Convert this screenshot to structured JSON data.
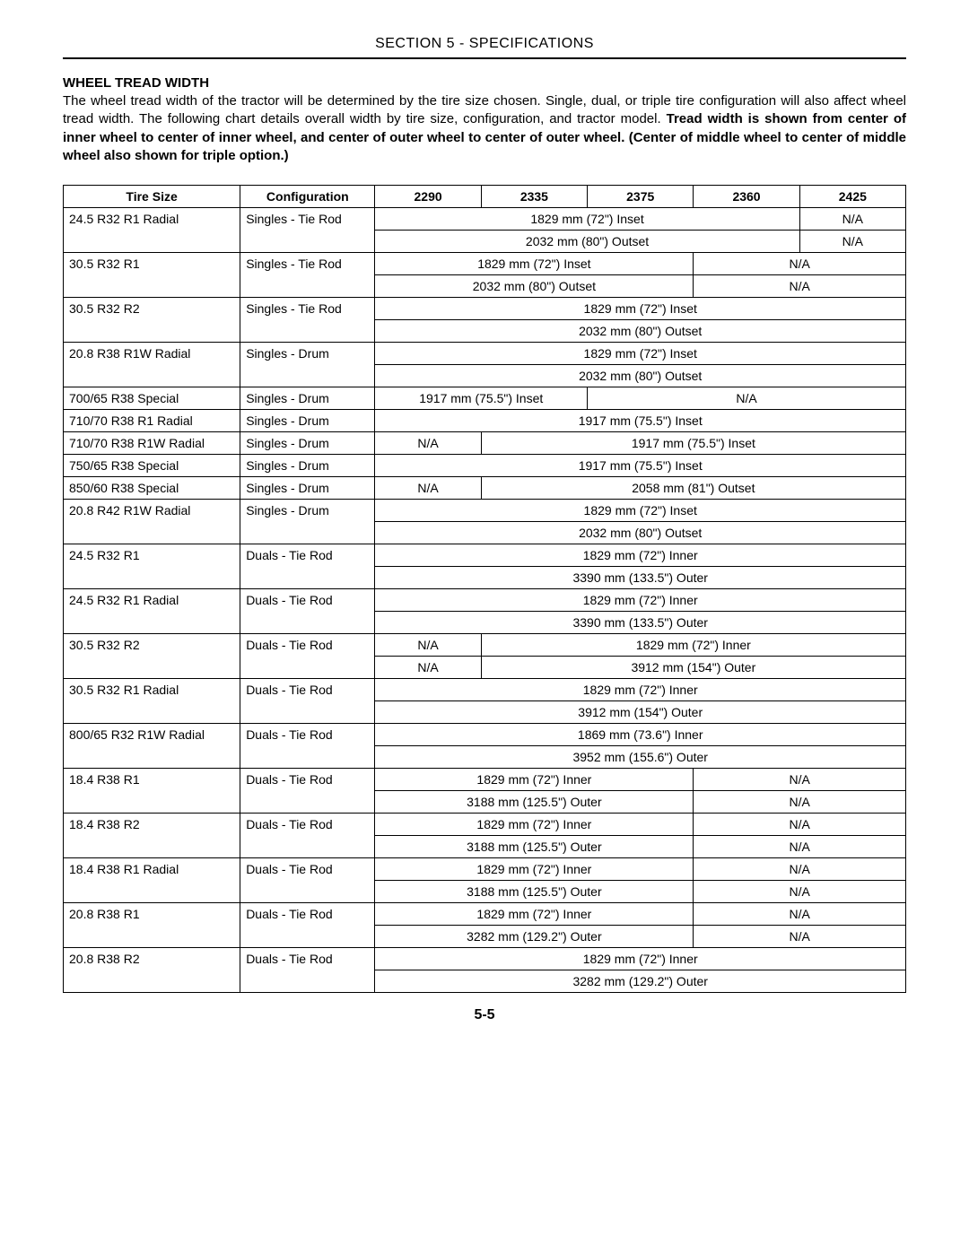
{
  "header": "SECTION 5 - SPECIFICATIONS",
  "subhead": "WHEEL TREAD WIDTH",
  "intro_plain": "The wheel tread width of the tractor will be determined by the tire size chosen. Single, dual, or triple tire configuration will also affect wheel tread width. The following chart details overall width by tire size, configuration, and tractor model. ",
  "intro_bold": "Tread width is shown from center of inner wheel to center of inner wheel, and center of outer wheel to center of outer wheel. (Center of middle wheel to center of middle wheel also shown for triple option.)",
  "page_number": "5-5",
  "cols": {
    "tire": "Tire Size",
    "conf": "Configuration",
    "m1": "2290",
    "m2": "2335",
    "m3": "2375",
    "m4": "2360",
    "m5": "2425"
  },
  "v": {
    "inset72": "1829 mm (72\") Inset",
    "outset80": "2032 mm (80\") Outset",
    "inset755": "1917 mm (75.5\") Inset",
    "outset81": "2058 mm (81\") Outset",
    "inner72": "1829 mm (72\") Inner",
    "outer1335": "3390 mm (133.5\") Outer",
    "outer154": "3912 mm (154\") Outer",
    "inner736": "1869 mm (73.6\") Inner",
    "outer1556": "3952 mm (155.6\") Outer",
    "outer1255": "3188 mm (125.5\") Outer",
    "outer1292": "3282 mm (129.2\") Outer",
    "na": "N/A"
  },
  "tire": {
    "r1": "24.5 R32 R1 Radial",
    "r2": "30.5 R32 R1",
    "r3": "30.5 R32 R2",
    "r4": "20.8 R38 R1W Radial",
    "r5": "700/65 R38 Special",
    "r6": "710/70 R38 R1 Radial",
    "r7": "710/70 R38 R1W Radial",
    "r8": "750/65 R38 Special",
    "r9": "850/60 R38 Special",
    "r10": "20.8 R42 R1W Radial",
    "r11": "24.5 R32 R1",
    "r12": "24.5 R32 R1 Radial",
    "r13": "30.5 R32 R2",
    "r14": "30.5 R32 R1 Radial",
    "r15": "800/65 R32 R1W Radial",
    "r16": "18.4 R38 R1",
    "r17": "18.4 R38 R2",
    "r18": "18.4 R38 R1 Radial",
    "r19": "20.8 R38 R1",
    "r20": "20.8 R38 R2"
  },
  "conf": {
    "str": "Singles - Tie Rod",
    "sdr": "Singles - Drum",
    "dtr": "Duals - Tie Rod"
  }
}
